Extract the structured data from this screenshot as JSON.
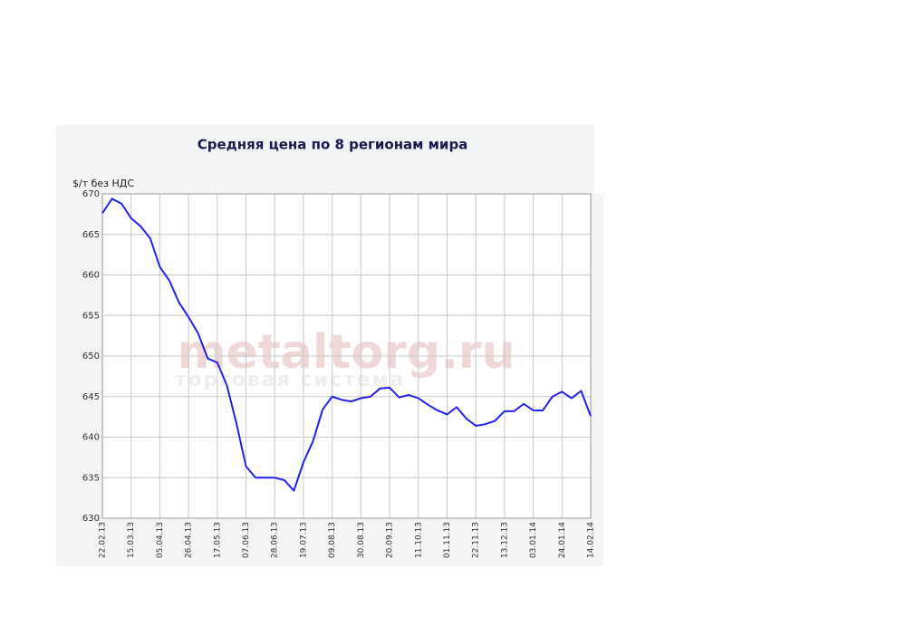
{
  "chart_data": {
    "type": "line",
    "title": "Средняя цена по 8 регионам мира",
    "y_label": "$/т без НДС",
    "watermark": [
      "metaltorg.ru",
      "торговая система"
    ],
    "categories": [
      "22.02.13",
      null,
      null,
      "15.03.13",
      null,
      null,
      "05.04.13",
      null,
      null,
      "26.04.13",
      null,
      null,
      "17.05.13",
      null,
      null,
      "07.06.13",
      null,
      null,
      "28.06.13",
      null,
      null,
      "19.07.13",
      null,
      null,
      "09.08.13",
      null,
      null,
      "30.08.13",
      null,
      null,
      "20.09.13",
      null,
      null,
      "11.10.13",
      null,
      null,
      "01.11.13",
      null,
      null,
      "22.11.13",
      null,
      null,
      "13.12.13",
      null,
      null,
      "03.01.14",
      null,
      null,
      "24.01.14",
      null,
      null,
      "14.02.14"
    ],
    "series": [
      {
        "name": "Средняя цена",
        "color": "#2222ee",
        "values": [
          667.6,
          669.4,
          668.8,
          667.0,
          666.0,
          664.5,
          661.0,
          659.3,
          656.6,
          654.8,
          652.8,
          649.7,
          649.2,
          646.4,
          641.7,
          636.4,
          635.0,
          635.0,
          635.0,
          634.7,
          633.4,
          636.9,
          639.5,
          643.4,
          645.0,
          644.6,
          644.4,
          644.8,
          645.0,
          646.0,
          646.1,
          644.9,
          645.2,
          644.8,
          644.0,
          643.3,
          642.8,
          643.7,
          642.3,
          641.4,
          641.6,
          642.0,
          643.2,
          643.2,
          644.1,
          643.3,
          643.3,
          645.0,
          645.6,
          644.8,
          645.7,
          642.6
        ]
      }
    ],
    "ylim": [
      630,
      670
    ],
    "yticks": [
      630,
      635,
      640,
      645,
      650,
      655,
      660,
      665,
      670
    ],
    "grid": true
  }
}
